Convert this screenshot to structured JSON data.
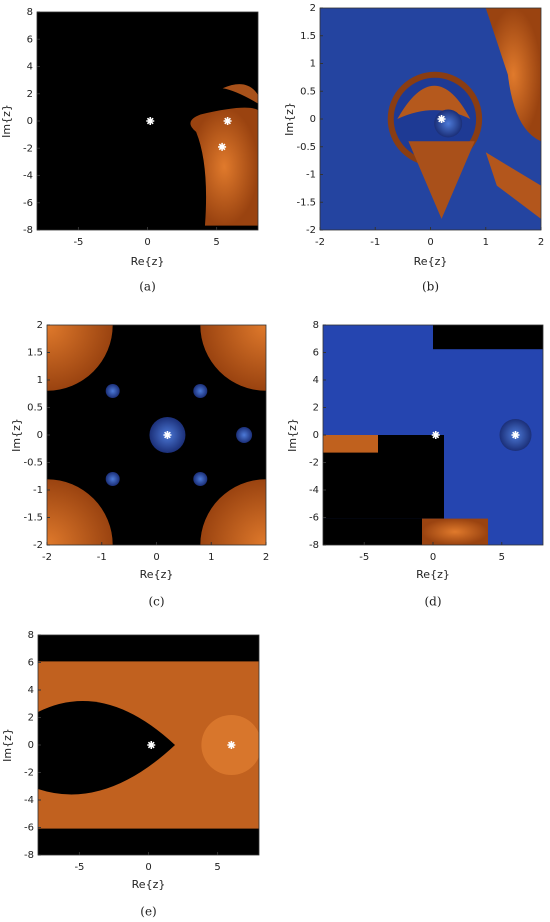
{
  "chart_data": [
    {
      "type": "scatter",
      "panel": "(a)",
      "xlabel": "Re{z}",
      "ylabel": "Im{z}",
      "x": [
        0.2,
        5.8,
        5.4
      ],
      "values": [
        0,
        0,
        -1.9
      ],
      "color": "#ffffff",
      "xlim": [
        -8,
        8
      ],
      "xticks": [
        -5,
        0,
        5
      ],
      "ylim": [
        -8,
        8
      ],
      "yticks": [
        -8,
        -6,
        -4,
        -2,
        0,
        2,
        4,
        6,
        8
      ]
    },
    {
      "type": "scatter",
      "panel": "(b)",
      "xlabel": "Re{z}",
      "ylabel": "Im{z}",
      "x": [
        0.2
      ],
      "values": [
        0
      ],
      "color": "#ffffff",
      "xlim": [
        -2,
        2
      ],
      "xticks": [
        -2,
        -1,
        0,
        1,
        2
      ],
      "ylim": [
        -2,
        2
      ],
      "yticks": [
        -2,
        -1.5,
        -1,
        -0.5,
        0,
        0.5,
        1,
        1.5,
        2
      ]
    },
    {
      "type": "scatter",
      "panel": "(c)",
      "xlabel": "Re{z}",
      "ylabel": "Im{z}",
      "x": [
        0.2
      ],
      "values": [
        0
      ],
      "color": "#ffffff",
      "xlim": [
        -2,
        2
      ],
      "xticks": [
        -2,
        -1,
        0,
        1,
        2
      ],
      "ylim": [
        -2,
        2
      ],
      "yticks": [
        -2,
        -1.5,
        -1,
        -0.5,
        0,
        0.5,
        1,
        1.5,
        2
      ]
    },
    {
      "type": "scatter",
      "panel": "(d)",
      "xlabel": "Re{z}",
      "ylabel": "Im{z}",
      "x": [
        0.2,
        6
      ],
      "values": [
        0,
        0
      ],
      "color": "#ffffff",
      "xlim": [
        -8,
        8
      ],
      "xticks": [
        -5,
        0,
        5
      ],
      "ylim": [
        -8,
        8
      ],
      "yticks": [
        -8,
        -6,
        -4,
        -2,
        0,
        2,
        4,
        6,
        8
      ]
    },
    {
      "type": "scatter",
      "panel": "(e)",
      "xlabel": "Re{z}",
      "ylabel": "Im{z}",
      "x": [
        0.2,
        6
      ],
      "values": [
        0,
        0
      ],
      "color": "#ffffff",
      "xlim": [
        -8,
        8
      ],
      "xticks": [
        -5,
        0,
        5
      ],
      "ylim": [
        -8,
        8
      ],
      "yticks": [
        -8,
        -6,
        -4,
        -2,
        0,
        2,
        4,
        6,
        8
      ]
    }
  ]
}
